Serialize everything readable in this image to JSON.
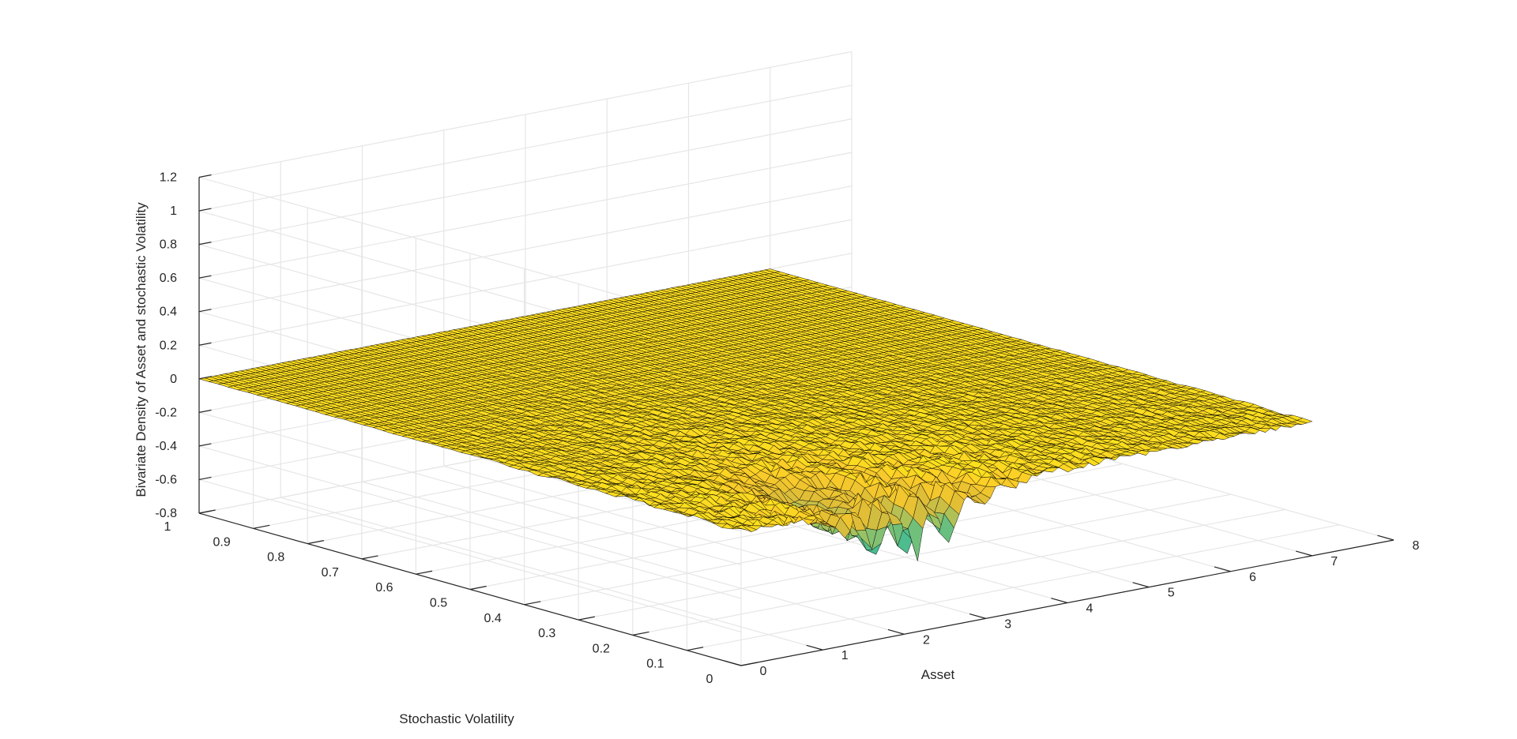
{
  "chart_data": {
    "type": "surface",
    "title": "",
    "xlabel": "Asset",
    "ylabel": "Stochastic Volatility",
    "zlabel": "Bivariate Density of Asset and stochastic Volatility",
    "xlim": [
      0,
      8
    ],
    "ylim": [
      0,
      1
    ],
    "zlim": [
      -0.8,
      1.2
    ],
    "xticks": [
      "0",
      "1",
      "2",
      "3",
      "4",
      "5",
      "6",
      "7",
      "8"
    ],
    "yticks": [
      "0",
      "0.1",
      "0.2",
      "0.3",
      "0.4",
      "0.5",
      "0.6",
      "0.7",
      "0.8",
      "0.9",
      "1"
    ],
    "zticks": [
      "-0.8",
      "-0.6",
      "-0.4",
      "-0.2",
      "0",
      "0.2",
      "0.4",
      "0.6",
      "0.8",
      "1",
      "1.2"
    ],
    "grid": true,
    "colormap": "parula",
    "surface_extent": {
      "x": [
        0,
        7
      ],
      "y": [
        0,
        1
      ]
    },
    "features": {
      "baseline": 0,
      "peak": {
        "x": 2.1,
        "y": 0.02,
        "z": 0.22
      },
      "minimum": {
        "z": -0.68
      }
    }
  },
  "colors": {
    "grid": "#e6e6e6",
    "axis": "#262626",
    "mesh_edge": "#000000"
  }
}
